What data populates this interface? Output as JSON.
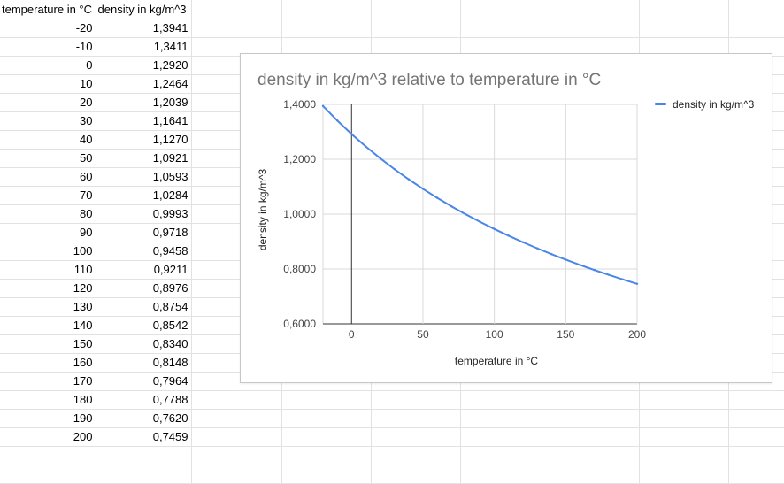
{
  "sheet": {
    "headers": [
      "temperature in °C",
      "density in kg/m^3"
    ],
    "rows": [
      [
        "-20",
        "1,3941"
      ],
      [
        "-10",
        "1,3411"
      ],
      [
        "0",
        "1,2920"
      ],
      [
        "10",
        "1,2464"
      ],
      [
        "20",
        "1,2039"
      ],
      [
        "30",
        "1,1641"
      ],
      [
        "40",
        "1,1270"
      ],
      [
        "50",
        "1,0921"
      ],
      [
        "60",
        "1,0593"
      ],
      [
        "70",
        "1,0284"
      ],
      [
        "80",
        "0,9993"
      ],
      [
        "90",
        "0,9718"
      ],
      [
        "100",
        "0,9458"
      ],
      [
        "110",
        "0,9211"
      ],
      [
        "120",
        "0,8976"
      ],
      [
        "130",
        "0,8754"
      ],
      [
        "140",
        "0,8542"
      ],
      [
        "150",
        "0,8340"
      ],
      [
        "160",
        "0,8148"
      ],
      [
        "170",
        "0,7964"
      ],
      [
        "180",
        "0,7788"
      ],
      [
        "190",
        "0,7620"
      ],
      [
        "200",
        "0,7459"
      ]
    ]
  },
  "chart_data": {
    "type": "line",
    "title": "density in kg/m^3 relative to temperature in °C",
    "xlabel": "temperature in °C",
    "ylabel": "density in kg/m^3",
    "xlim": [
      -20,
      200
    ],
    "ylim": [
      0.6,
      1.4
    ],
    "xticks": [
      0,
      50,
      100,
      150,
      200
    ],
    "yticks": [
      0.6,
      0.8,
      1.0,
      1.2,
      1.4
    ],
    "yticklabels": [
      "0,6000",
      "0,8000",
      "1,0000",
      "1,2000",
      "1,4000"
    ],
    "grid": true,
    "legend_position": "right",
    "series_color": "#4a86e8",
    "x": [
      -20,
      -10,
      0,
      10,
      20,
      30,
      40,
      50,
      60,
      70,
      80,
      90,
      100,
      110,
      120,
      130,
      140,
      150,
      160,
      170,
      180,
      190,
      200
    ],
    "series": [
      {
        "name": "density in kg/m^3",
        "values": [
          1.3941,
          1.3411,
          1.292,
          1.2464,
          1.2039,
          1.1641,
          1.127,
          1.0921,
          1.0593,
          1.0284,
          0.9993,
          0.9718,
          0.9458,
          0.9211,
          0.8976,
          0.8754,
          0.8542,
          0.834,
          0.8148,
          0.7964,
          0.7788,
          0.762,
          0.7459
        ]
      }
    ]
  }
}
